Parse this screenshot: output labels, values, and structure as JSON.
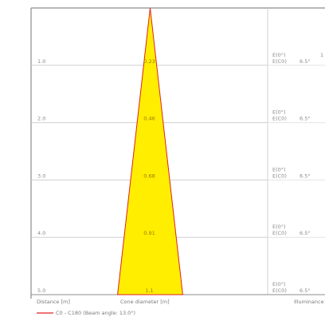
{
  "chart_data": {
    "type": "area",
    "rows": [
      {
        "distance_label": "1.0",
        "distance": 1.0,
        "diameter_label": "0.23",
        "diameter": 0.23,
        "e0": "E(0°)",
        "ec0": "E(C0)",
        "angle": "6.5°",
        "right_value": "1"
      },
      {
        "distance_label": "2.0",
        "distance": 2.0,
        "diameter_label": "0.46",
        "diameter": 0.46,
        "e0": "E(0°)",
        "ec0": "E(C0)",
        "angle": "6.5°",
        "right_value": ""
      },
      {
        "distance_label": "3.0",
        "distance": 3.0,
        "diameter_label": "0.68",
        "diameter": 0.68,
        "e0": "E(0°)",
        "ec0": "E(C0)",
        "angle": "6.5°",
        "right_value": ""
      },
      {
        "distance_label": "4.0",
        "distance": 4.0,
        "diameter_label": "0.91",
        "diameter": 0.91,
        "e0": "E(0°)",
        "ec0": "E(C0)",
        "angle": "6.5°",
        "right_value": ""
      },
      {
        "distance_label": "5.0",
        "distance": 5.0,
        "diameter_label": "1.1",
        "diameter": 1.14,
        "e0": "E(0°)",
        "ec0": "E(C0)",
        "angle": "6.5°",
        "right_value": ""
      }
    ],
    "xlabel_distance": "Distance [m]",
    "xlabel_diameter": "Cone diameter [m]",
    "xlabel_illuminance": "Illuminance",
    "legend": "C0 - C180 (Beam angle: 13.0°)",
    "beam_angle_deg": 13.0,
    "max_distance": 5.0,
    "colors": {
      "cone_fill": "#ffee00",
      "cone_edge": "#e02020",
      "grid": "#d0d0d0",
      "frame": "#8c8c8c"
    }
  }
}
